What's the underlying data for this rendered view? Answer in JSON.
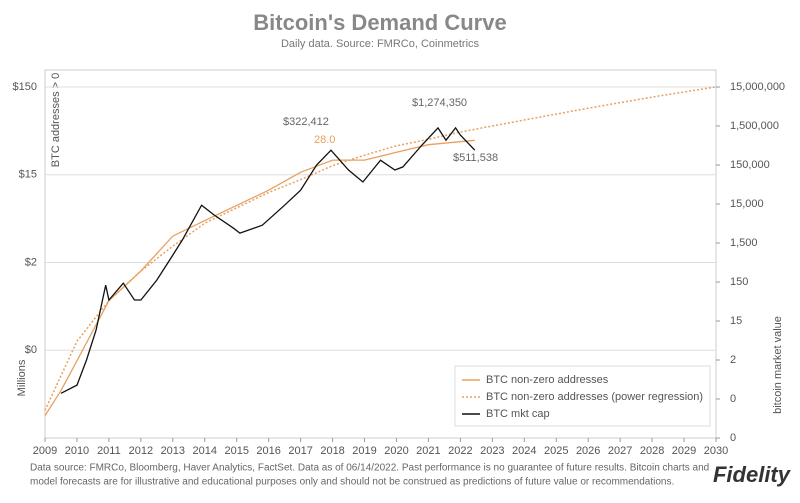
{
  "chart_data": {
    "type": "line",
    "title": "Bitcoin's Demand Curve",
    "subtitle": "Daily data.  Source: FMRCo, Coinmetrics",
    "y_label_top": "BTC addresses > 0",
    "y_label_bottom": "Millions",
    "y2_label": "bitcoin market value",
    "xlim": [
      2009,
      2030
    ],
    "xticks": [
      2009,
      2010,
      2011,
      2012,
      2013,
      2014,
      2015,
      2016,
      2017,
      2018,
      2019,
      2020,
      2021,
      2022,
      2023,
      2024,
      2025,
      2026,
      2027,
      2028,
      2029,
      2030
    ],
    "log_y": true,
    "ylim": [
      0.015,
      234
    ],
    "yticks": [
      {
        "value": 150,
        "label": "$150"
      },
      {
        "value": 15,
        "label": "$15"
      },
      {
        "value": 1.5,
        "label": "$2"
      },
      {
        "value": 0.15,
        "label": "$0"
      }
    ],
    "y2lim": [
      0.015,
      41000000
    ],
    "y2ticks": [
      {
        "value": 15000000,
        "label": "15,000,000"
      },
      {
        "value": 1500000,
        "label": "1,500,000"
      },
      {
        "value": 150000,
        "label": "150,000"
      },
      {
        "value": 15000,
        "label": "15,000"
      },
      {
        "value": 1500,
        "label": "1,500"
      },
      150,
      15,
      {
        "value": 1.5,
        "label": "2"
      },
      {
        "value": 0.15,
        "label": "0"
      },
      {
        "value": 0.015,
        "label": "0"
      }
    ],
    "grid": true,
    "legend": "lower right",
    "series": [
      {
        "name": "BTC non-zero addresses",
        "color": "#e8a060",
        "style": "solid",
        "x": [
          2009.0,
          2009.5,
          2010.0,
          2010.5,
          2011.0,
          2012.0,
          2013.0,
          2014.0,
          2015.0,
          2016.0,
          2017.0,
          2018.0,
          2019.0,
          2020.0,
          2021.0,
          2022.45
        ],
        "values": [
          0.027,
          0.052,
          0.114,
          0.25,
          0.55,
          1.2,
          3.0,
          4.5,
          6.7,
          10,
          16,
          22,
          22,
          27,
          33,
          37
        ]
      },
      {
        "name": "BTC non-zero addresses (power regression)",
        "color": "#e8a060",
        "style": "dotted",
        "x": [
          2009,
          2010,
          2011,
          2012,
          2013,
          2014,
          2015,
          2016,
          2017,
          2018,
          2019,
          2020,
          2021,
          2022,
          2024,
          2026,
          2028,
          2030
        ],
        "values": [
          0.031,
          0.19,
          0.55,
          1.2,
          2.3,
          4.2,
          6.3,
          9.4,
          13.2,
          19,
          25,
          32,
          38,
          46,
          63,
          86,
          115,
          150
        ]
      },
      {
        "name": "BTC mkt cap",
        "color": "#111111",
        "style": "solid",
        "axis": "y2",
        "x": [
          2009.5,
          2010.0,
          2010.3,
          2010.6,
          2010.9,
          2011.0,
          2011.45,
          2011.8,
          2012.0,
          2012.5,
          2013.0,
          2013.3,
          2013.9,
          2014.3,
          2014.9,
          2015.1,
          2015.8,
          2016.5,
          2017.0,
          2017.5,
          2017.95,
          2018.5,
          2018.95,
          2019.5,
          2019.95,
          2020.2,
          2020.8,
          2021.3,
          2021.55,
          2021.85,
          2022.0,
          2022.45
        ],
        "values": [
          0.21,
          0.34,
          1.5,
          8.8,
          125,
          52,
          140,
          52,
          52,
          168,
          735,
          1800,
          14000,
          7800,
          3600,
          2700,
          4300,
          14000,
          34000,
          150000,
          360000,
          112000,
          55000,
          200000,
          112000,
          134000,
          490000,
          1340000,
          650000,
          1340000,
          880000,
          360000
        ]
      }
    ],
    "annotations": [
      "$322,412",
      "28.0",
      "$1,274,350",
      "$511,538"
    ],
    "footnote": [
      "Data source: FMRCo, Bloomberg, Haver Analytics, FactSet. Data as of 06/14/2022. Past performance is no guarantee of future results. Bitcoin charts and",
      "model forecasts are for illustrative and educational purposes only and should not be construed as predictions of future value or recommendations."
    ],
    "logo": "Fidelity"
  }
}
